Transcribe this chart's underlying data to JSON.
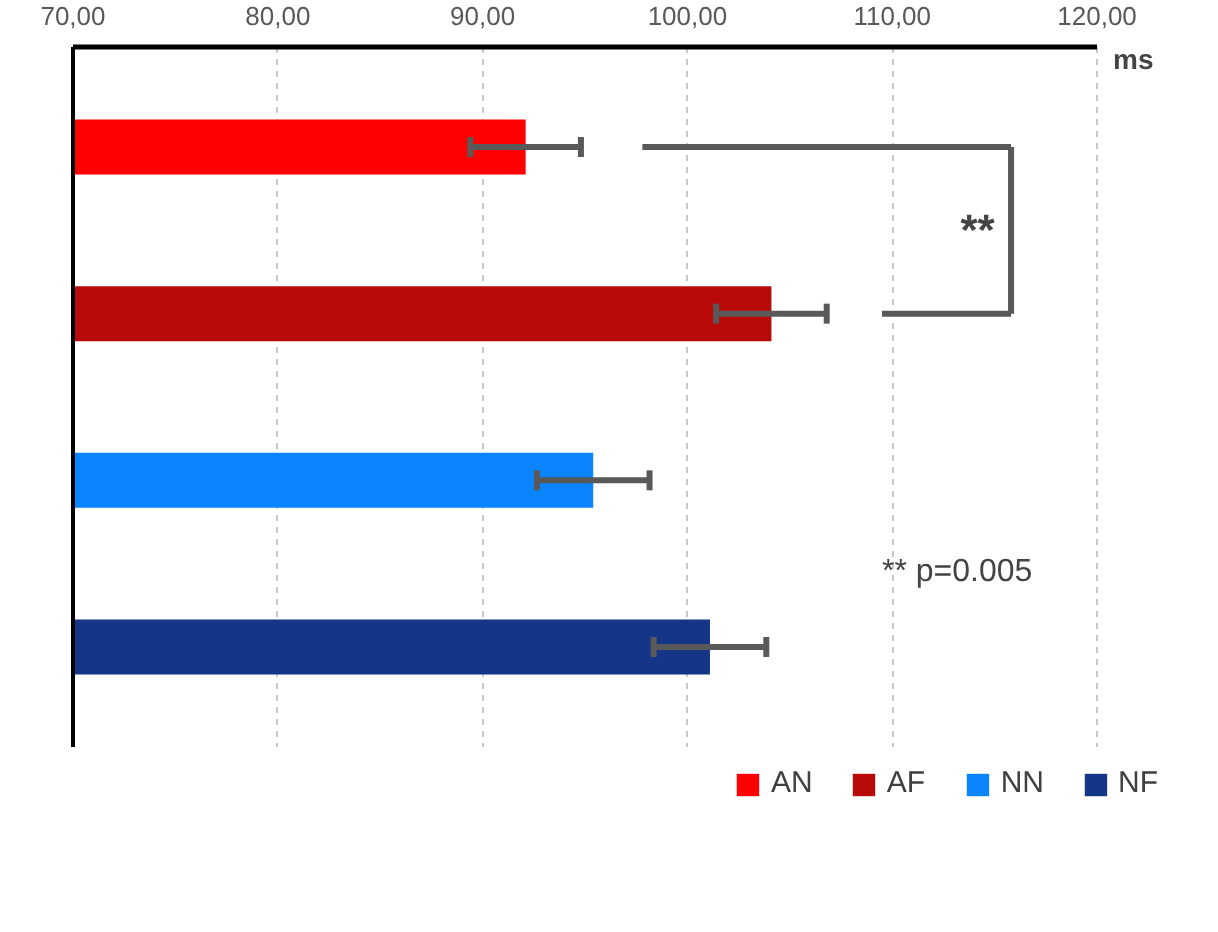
{
  "chart_data": {
    "type": "bar",
    "orientation": "horizontal",
    "xlabel": "ms",
    "categories": [
      null,
      null,
      null,
      null
    ],
    "series": [
      {
        "name": "AN",
        "color": "#ff0000",
        "values": [
          92.1,
          null,
          null,
          null
        ],
        "errors": [
          2.7,
          null,
          null,
          null
        ]
      },
      {
        "name": "AF",
        "color": "#b90a0a",
        "values": [
          null,
          104.1,
          null,
          null
        ],
        "errors": [
          null,
          2.7,
          null,
          null
        ]
      },
      {
        "name": "NN",
        "color": "#0a84ff",
        "values": [
          null,
          null,
          95.4,
          null
        ],
        "errors": [
          null,
          null,
          2.75,
          null
        ]
      },
      {
        "name": "NF",
        "color": "#153586",
        "values": [
          null,
          null,
          null,
          101.1
        ],
        "errors": [
          null,
          null,
          null,
          2.75
        ]
      }
    ],
    "xlim": [
      70,
      120
    ],
    "xticks": [
      {
        "value": 70,
        "label": "70,00"
      },
      {
        "value": 80,
        "label": "80,00"
      },
      {
        "value": 90,
        "label": "90,00"
      },
      {
        "value": 100,
        "label": "100,00"
      },
      {
        "value": 110,
        "label": "110,00"
      },
      {
        "value": 120,
        "label": "120,00"
      }
    ],
    "grid": "x",
    "legend": "bottom",
    "annotations": [
      "**",
      "** p=0.005"
    ]
  }
}
